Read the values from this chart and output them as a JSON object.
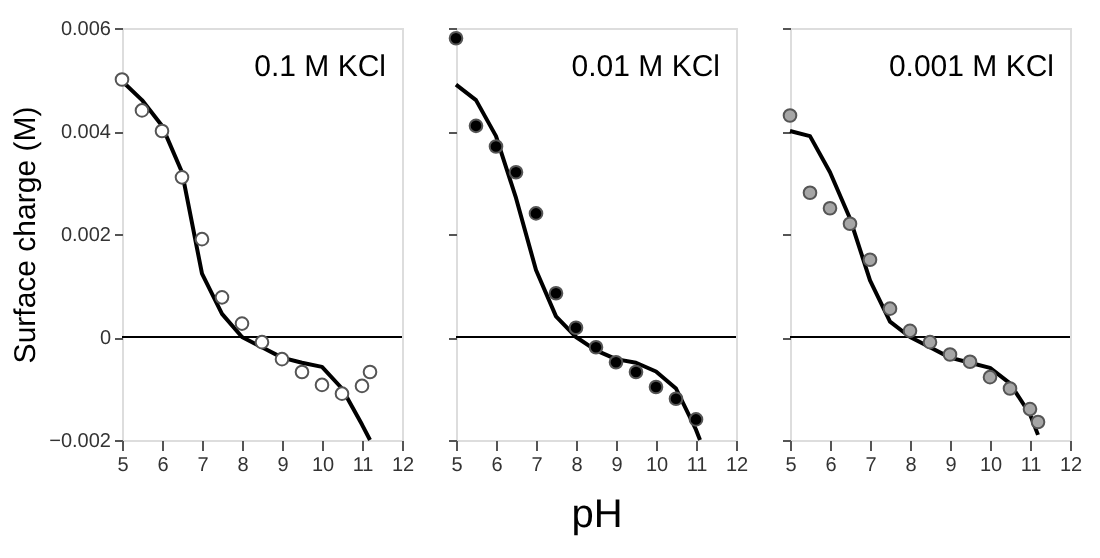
{
  "chart_data": [
    {
      "type": "scatter",
      "ylabel": "Surface charge (M)",
      "annotations": [
        "0.1 M KCl"
      ],
      "xlim": [
        5,
        12
      ],
      "xticks": [
        5,
        6,
        7,
        8,
        9,
        10,
        11,
        12
      ],
      "ylim": [
        -0.002,
        0.006
      ],
      "yticks": [
        -0.002,
        0,
        0.002,
        0.004,
        0.006
      ],
      "grid": false,
      "marker": "circle",
      "ref_lines": [
        {
          "axis": "y",
          "value": 0,
          "color": "#000000"
        }
      ],
      "series": [
        {
          "type": "line",
          "marker": "none",
          "color": "#000000",
          "x": [
            5,
            5.5,
            6,
            6.5,
            7,
            7.5,
            8,
            8.5,
            9,
            9.5,
            10,
            10.5,
            11,
            11.2
          ],
          "values": [
            0.00497,
            0.0046,
            0.0041,
            0.0032,
            0.00123,
            0.00045,
            0,
            -0.0002,
            -0.0004,
            -0.0005,
            -0.00058,
            -0.001,
            -0.0017,
            -0.002
          ]
        },
        {
          "color": "#ffffff",
          "x": [
            5,
            5.5,
            6,
            6.5,
            7,
            7.5,
            8,
            8.5,
            9,
            9.5,
            10,
            10.5,
            11,
            11.2
          ],
          "values": [
            0.005,
            0.0044,
            0.004,
            0.0031,
            0.0019,
            0.00077,
            0.00026,
            -0.0001,
            -0.00043,
            -0.00068,
            -0.00093,
            -0.0011,
            -0.00095,
            -0.00068
          ]
        }
      ]
    },
    {
      "type": "scatter",
      "xlabel": "pH",
      "annotations": [
        "0.01 M KCl"
      ],
      "xlim": [
        5,
        12
      ],
      "xticks": [
        5,
        6,
        7,
        8,
        9,
        10,
        11,
        12
      ],
      "ylim": [
        -0.002,
        0.006
      ],
      "yticks": [
        -0.002,
        0,
        0.002,
        0.004,
        0.006
      ],
      "tick_labels": "x",
      "grid": false,
      "marker": "circle",
      "ref_lines": [
        {
          "axis": "y",
          "value": 0,
          "color": "#000000"
        }
      ],
      "series": [
        {
          "type": "line",
          "marker": "none",
          "color": "#000000",
          "x": [
            5,
            5.5,
            6,
            6.5,
            7,
            7.5,
            8,
            8.5,
            9,
            9.5,
            10,
            10.5,
            11,
            11.1
          ],
          "values": [
            0.0049,
            0.0046,
            0.0039,
            0.0027,
            0.0013,
            0.0004,
            0,
            -0.00026,
            -0.00043,
            -0.0005,
            -0.00067,
            -0.001,
            -0.0018,
            -0.002
          ]
        },
        {
          "color": "#000000",
          "x": [
            5,
            5.5,
            6,
            6.5,
            7,
            7.5,
            8,
            8.5,
            9,
            9.5,
            10,
            10.5,
            11
          ],
          "values": [
            0.0058,
            0.0041,
            0.0037,
            0.0032,
            0.0024,
            0.00085,
            0.00018,
            -0.0002,
            -0.00049,
            -0.00068,
            -0.00097,
            -0.0012,
            -0.0016
          ]
        }
      ]
    },
    {
      "type": "scatter",
      "annotations": [
        "0.001 M KCl"
      ],
      "xlim": [
        5,
        12
      ],
      "xticks": [
        5,
        6,
        7,
        8,
        9,
        10,
        11,
        12
      ],
      "ylim": [
        -0.002,
        0.006
      ],
      "yticks": [
        -0.002,
        0,
        0.002,
        0.004,
        0.006
      ],
      "tick_labels": "x",
      "grid": false,
      "marker": "circle",
      "ref_lines": [
        {
          "axis": "y",
          "value": 0,
          "color": "#000000"
        }
      ],
      "series": [
        {
          "type": "line",
          "marker": "none",
          "color": "#000000",
          "x": [
            5,
            5.5,
            6,
            6.5,
            7,
            7.5,
            8,
            8.5,
            9,
            9.5,
            10,
            10.5,
            11,
            11.2
          ],
          "values": [
            0.004,
            0.0039,
            0.0032,
            0.0023,
            0.0011,
            0.0003,
            0,
            -0.0002,
            -0.0004,
            -0.0005,
            -0.0006,
            -0.0009,
            -0.0015,
            -0.0019
          ]
        },
        {
          "color": "#a6a6a6",
          "x": [
            5,
            5.5,
            6,
            6.5,
            7,
            7.5,
            8,
            8.5,
            9,
            9.5,
            10,
            10.5,
            11,
            11.2
          ],
          "values": [
            0.0043,
            0.0028,
            0.0025,
            0.0022,
            0.0015,
            0.00055,
            0.00012,
            -0.0001,
            -0.00034,
            -0.00048,
            -0.00078,
            -0.001,
            -0.0014,
            -0.00165
          ]
        }
      ]
    }
  ]
}
